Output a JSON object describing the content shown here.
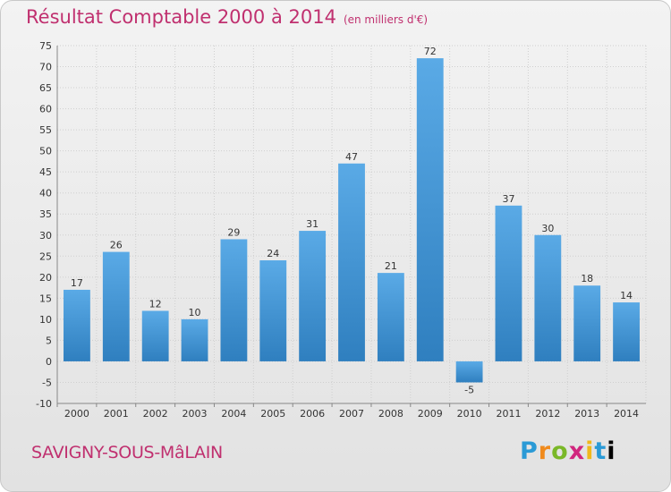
{
  "header": {
    "title": "Résultat Comptable 2000 à 2014",
    "subtitle": "(en milliers d'€)"
  },
  "footer": {
    "location": "SAVIGNY-SOUS-MâLAIN",
    "brand_letters": [
      "P",
      "r",
      "o",
      "x",
      "i",
      "t",
      "i"
    ],
    "brand_text": "Proxiti"
  },
  "colors": {
    "title": "#c0306f",
    "bar_top": "#5aaae6",
    "bar_bottom": "#2f7fbf",
    "background": "#eaeaea"
  },
  "chart_data": {
    "type": "bar",
    "title": "Résultat Comptable 2000 à 2014",
    "subtitle": "(en milliers d'€)",
    "categories": [
      "2000",
      "2001",
      "2002",
      "2003",
      "2004",
      "2005",
      "2006",
      "2007",
      "2008",
      "2009",
      "2010",
      "2011",
      "2012",
      "2013",
      "2014"
    ],
    "values": [
      17,
      26,
      12,
      10,
      29,
      24,
      31,
      47,
      21,
      72,
      -5,
      37,
      30,
      18,
      14
    ],
    "ylim": [
      -10,
      75
    ],
    "yticks": [
      -10,
      -5,
      0,
      5,
      10,
      15,
      20,
      25,
      30,
      35,
      40,
      45,
      50,
      55,
      60,
      65,
      70,
      75
    ],
    "grid": true,
    "legend": "none"
  }
}
